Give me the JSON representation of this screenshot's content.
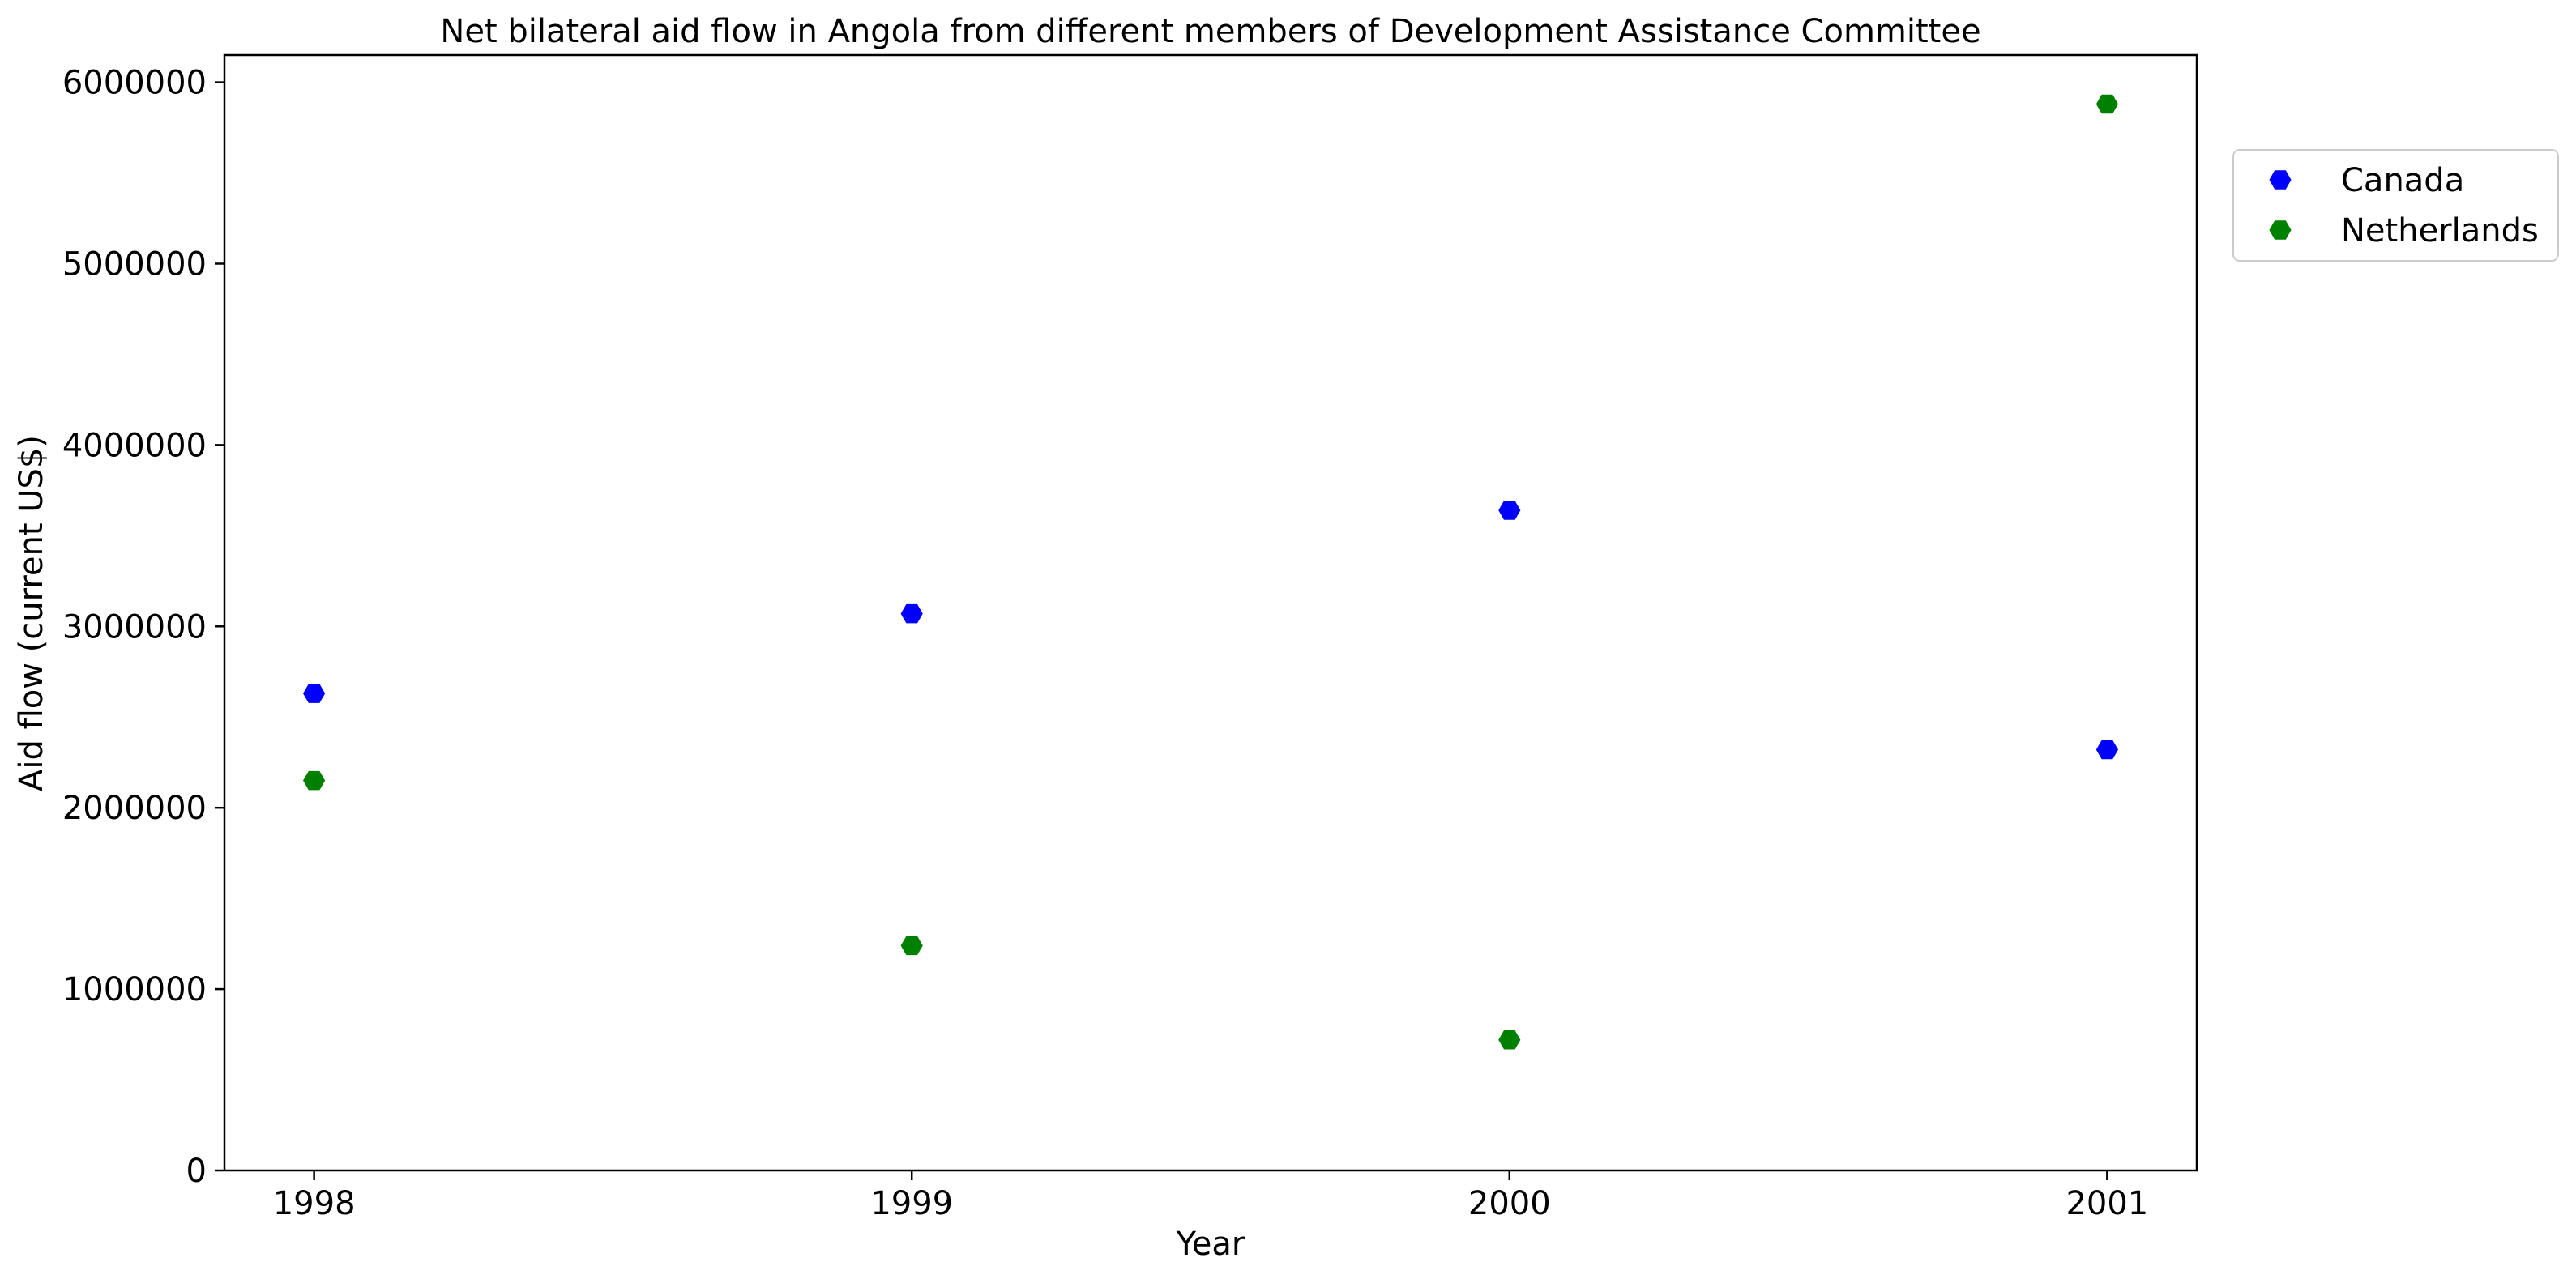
{
  "chart_data": {
    "type": "scatter",
    "title": "Net bilateral aid flow in Angola from different members of Development Assistance Committee",
    "xlabel": "Year",
    "ylabel": "Aid flow (current US$)",
    "categories": [
      "1998",
      "1999",
      "2000",
      "2001"
    ],
    "yticks": [
      "0",
      "1000000",
      "2000000",
      "3000000",
      "4000000",
      "5000000",
      "6000000"
    ],
    "ylim": [
      0,
      6150000
    ],
    "grid": false,
    "legend_position": "outside-top-right",
    "marker": "hexagon",
    "series": [
      {
        "name": "Canada",
        "color": "#0000ff",
        "values": [
          2630000,
          3070000,
          3640000,
          2320000
        ]
      },
      {
        "name": "Netherlands",
        "color": "#008000",
        "values": [
          2150000,
          1240000,
          720000,
          5880000
        ]
      }
    ]
  }
}
